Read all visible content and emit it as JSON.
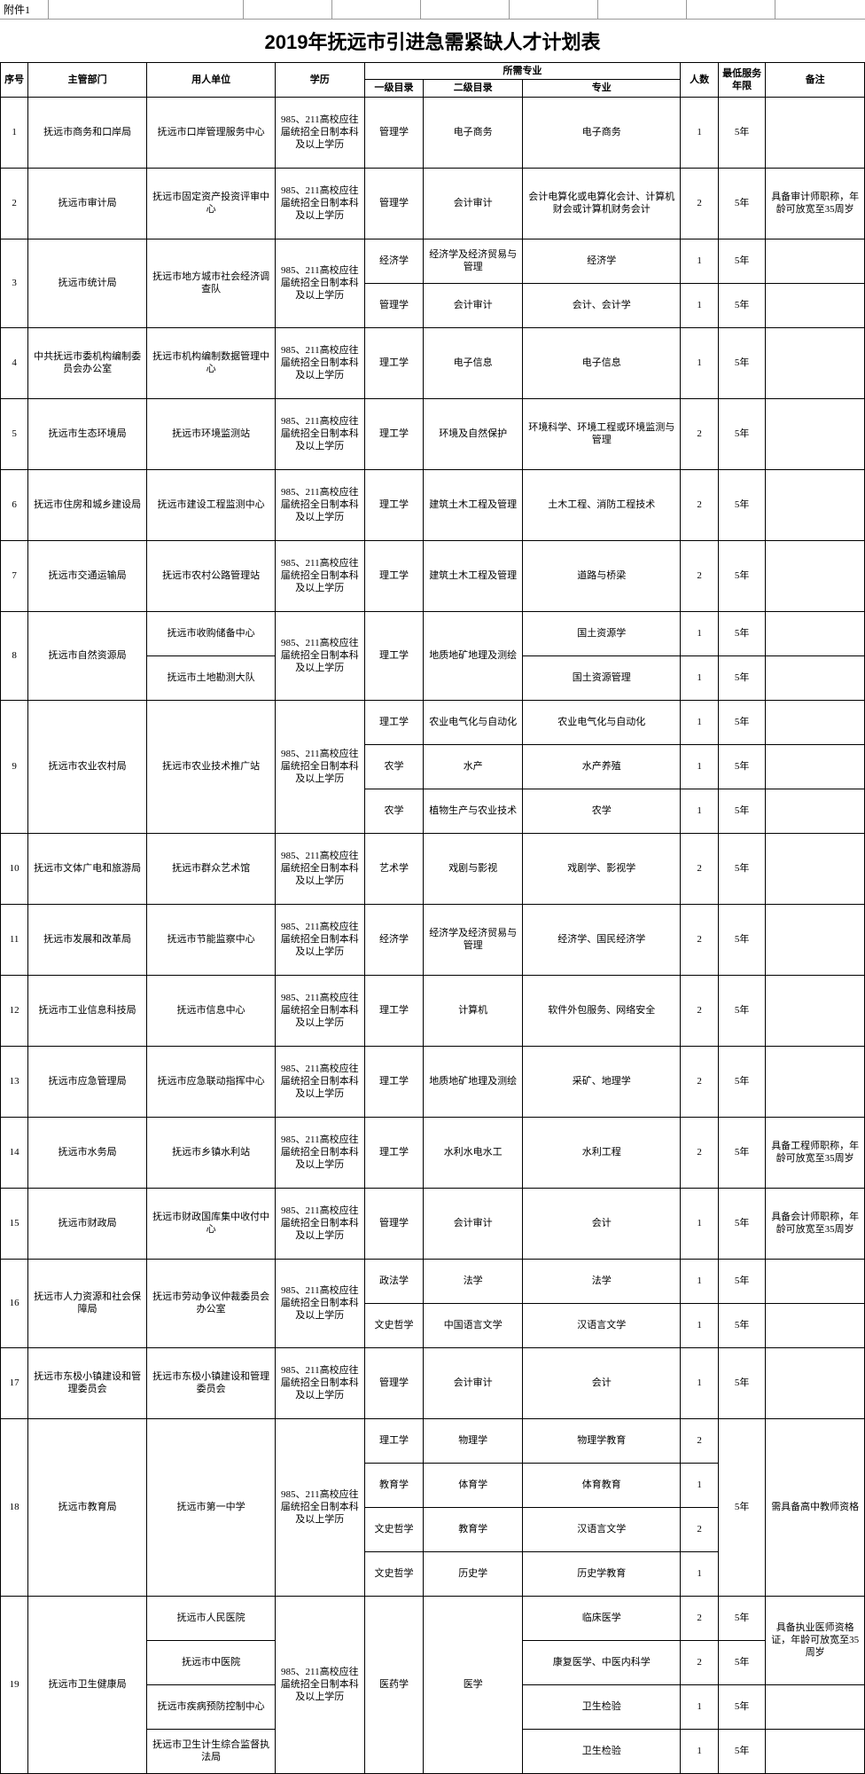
{
  "attachment_label": "附件1",
  "title": "2019年抚远市引进急需紧缺人才计划表",
  "headers": {
    "seq": "序号",
    "dept": "主管部门",
    "unit": "用人单位",
    "edu": "学历",
    "major_group": "所需专业",
    "cat1": "一级目录",
    "cat2": "二级目录",
    "major": "专业",
    "count": "人数",
    "years": "最低服务年限",
    "note": "备注"
  },
  "edu_text": "985、211高校应往届统招全日制本科及以上学历",
  "rows": [
    {
      "seq": "1",
      "dept": "抚远市商务和口岸局",
      "unit": "抚远市口岸管理服务中心",
      "cat1": "管理学",
      "cat2": "电子商务",
      "major": "电子商务",
      "count": "1",
      "years": "5年",
      "note": ""
    },
    {
      "seq": "2",
      "dept": "抚远市审计局",
      "unit": "抚远市固定资产投资评审中心",
      "cat1": "管理学",
      "cat2": "会计审计",
      "major": "会计电算化或电算化会计、计算机财会或计算机财务会计",
      "count": "2",
      "years": "5年",
      "note": "具备审计师职称，年龄可放宽至35周岁"
    },
    {
      "seq": "3",
      "dept": "抚远市统计局",
      "unit": "抚远市地方城市社会经济调查队",
      "sub": [
        {
          "cat1": "经济学",
          "cat2": "经济学及经济贸易与管理",
          "major": "经济学",
          "count": "1",
          "years": "5年",
          "note": ""
        },
        {
          "cat1": "管理学",
          "cat2": "会计审计",
          "major": "会计、会计学",
          "count": "1",
          "years": "5年",
          "note": ""
        }
      ]
    },
    {
      "seq": "4",
      "dept": "中共抚远市委机构编制委员会办公室",
      "unit": "抚远市机构编制数据管理中心",
      "cat1": "理工学",
      "cat2": "电子信息",
      "major": "电子信息",
      "count": "1",
      "years": "5年",
      "note": ""
    },
    {
      "seq": "5",
      "dept": "抚远市生态环境局",
      "unit": "抚远市环境监测站",
      "cat1": "理工学",
      "cat2": "环境及自然保护",
      "major": "环境科学、环境工程或环境监测与管理",
      "count": "2",
      "years": "5年",
      "note": ""
    },
    {
      "seq": "6",
      "dept": "抚远市住房和城乡建设局",
      "unit": "抚远市建设工程监测中心",
      "cat1": "理工学",
      "cat2": "建筑土木工程及管理",
      "major": "土木工程、消防工程技术",
      "count": "2",
      "years": "5年",
      "note": ""
    },
    {
      "seq": "7",
      "dept": "抚远市交通运输局",
      "unit": "抚远市农村公路管理站",
      "cat1": "理工学",
      "cat2": "建筑土木工程及管理",
      "major": "道路与桥梁",
      "count": "2",
      "years": "5年",
      "note": ""
    },
    {
      "seq": "8",
      "dept": "抚远市自然资源局",
      "edu_span": true,
      "cat1_span": "理工学",
      "cat2_span": "地质地矿地理及测绘",
      "sub": [
        {
          "unit": "抚远市收购储备中心",
          "major": "国土资源学",
          "count": "1",
          "years": "5年",
          "note": ""
        },
        {
          "unit": "抚远市土地勘测大队",
          "major": "国土资源管理",
          "count": "1",
          "years": "5年",
          "note": ""
        }
      ]
    },
    {
      "seq": "9",
      "dept": "抚远市农业农村局",
      "unit": "抚远市农业技术推广站",
      "sub": [
        {
          "cat1": "理工学",
          "cat2": "农业电气化与自动化",
          "major": "农业电气化与自动化",
          "count": "1",
          "years": "5年",
          "note": ""
        },
        {
          "cat1": "农学",
          "cat2": "水产",
          "major": "水产养殖",
          "count": "1",
          "years": "5年",
          "note": ""
        },
        {
          "cat1": "农学",
          "cat2": "植物生产与农业技术",
          "major": "农学",
          "count": "1",
          "years": "5年",
          "note": ""
        }
      ]
    },
    {
      "seq": "10",
      "dept": "抚远市文体广电和旅游局",
      "unit": "抚远市群众艺术馆",
      "cat1": "艺术学",
      "cat2": "戏剧与影视",
      "major": "戏剧学、影视学",
      "count": "2",
      "years": "5年",
      "note": ""
    },
    {
      "seq": "11",
      "dept": "抚远市发展和改革局",
      "unit": "抚远市节能监察中心",
      "cat1": "经济学",
      "cat2": "经济学及经济贸易与管理",
      "major": "经济学、国民经济学",
      "count": "2",
      "years": "5年",
      "note": ""
    },
    {
      "seq": "12",
      "dept": "抚远市工业信息科技局",
      "unit": "抚远市信息中心",
      "cat1": "理工学",
      "cat2": "计算机",
      "major": "软件外包服务、网络安全",
      "count": "2",
      "years": "5年",
      "note": ""
    },
    {
      "seq": "13",
      "dept": "抚远市应急管理局",
      "unit": "抚远市应急联动指挥中心",
      "cat1": "理工学",
      "cat2": "地质地矿地理及测绘",
      "major": "采矿、地理学",
      "count": "2",
      "years": "5年",
      "note": ""
    },
    {
      "seq": "14",
      "dept": "抚远市水务局",
      "unit": "抚远市乡镇水利站",
      "cat1": "理工学",
      "cat2": "水利水电水工",
      "major": "水利工程",
      "count": "2",
      "years": "5年",
      "note": "具备工程师职称，年龄可放宽至35周岁"
    },
    {
      "seq": "15",
      "dept": "抚远市财政局",
      "unit": "抚远市财政国库集中收付中心",
      "cat1": "管理学",
      "cat2": "会计审计",
      "major": "会计",
      "count": "1",
      "years": "5年",
      "note": "具备会计师职称，年龄可放宽至35周岁"
    },
    {
      "seq": "16",
      "dept": "抚远市人力资源和社会保障局",
      "unit": "抚远市劳动争议仲裁委员会办公室",
      "sub": [
        {
          "cat1": "政法学",
          "cat2": "法学",
          "major": "法学",
          "count": "1",
          "years": "5年",
          "note": ""
        },
        {
          "cat1": "文史哲学",
          "cat2": "中国语言文学",
          "major": "汉语言文学",
          "count": "1",
          "years": "5年",
          "note": ""
        }
      ]
    },
    {
      "seq": "17",
      "dept": "抚远市东极小镇建设和管理委员会",
      "unit": "抚远市东极小镇建设和管理委员会",
      "cat1": "管理学",
      "cat2": "会计审计",
      "major": "会计",
      "count": "1",
      "years": "5年",
      "note": ""
    },
    {
      "seq": "18",
      "dept": "抚远市教育局",
      "unit": "抚远市第一中学",
      "years_span": "5年",
      "note_span": "需具备高中教师资格",
      "sub": [
        {
          "cat1": "理工学",
          "cat2": "物理学",
          "major": "物理学教育",
          "count": "2"
        },
        {
          "cat1": "教育学",
          "cat2": "体育学",
          "major": "体育教育",
          "count": "1"
        },
        {
          "cat1": "文史哲学",
          "cat2": "教育学",
          "major": "汉语言文学",
          "count": "2"
        },
        {
          "cat1": "文史哲学",
          "cat2": "历史学",
          "major": "历史学教育",
          "count": "1"
        }
      ]
    },
    {
      "seq": "19",
      "dept": "抚远市卫生健康局",
      "cat1_span": "医药学",
      "cat2_span": "医学",
      "note_span": "具备执业医师资格证，年龄可放宽至35周岁",
      "sub": [
        {
          "unit": "抚远市人民医院",
          "major": "临床医学",
          "count": "2",
          "years": "5年",
          "note_row": true
        },
        {
          "unit": "抚远市中医院",
          "major": "康复医学、中医内科学",
          "count": "2",
          "years": "5年",
          "note_row": true
        },
        {
          "unit": "抚远市疾病预防控制中心",
          "major": "卫生检验",
          "count": "1",
          "years": "5年"
        },
        {
          "unit": "抚远市卫生计生综合监督执法局",
          "major": "卫生检验",
          "count": "1",
          "years": "5年"
        }
      ]
    }
  ]
}
